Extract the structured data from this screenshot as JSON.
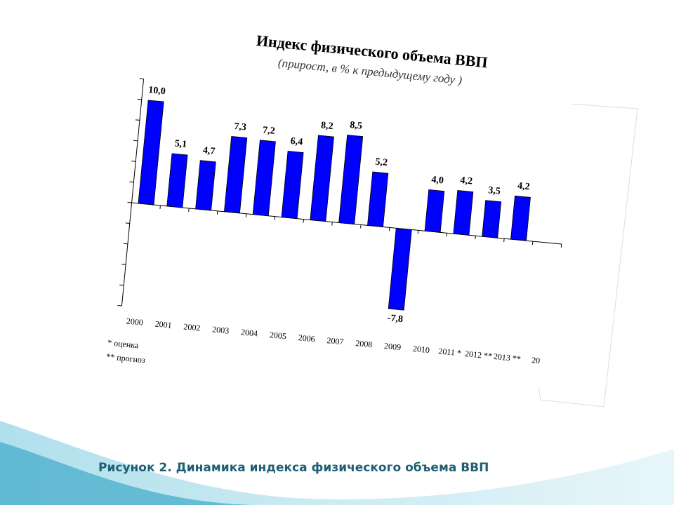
{
  "chart_data": {
    "type": "bar",
    "title": "Индекс физического объема ВВП",
    "subtitle": "(прирост, в % к предыдущему году )",
    "categories": [
      "2000",
      "2001",
      "2002",
      "2003",
      "2004",
      "2005",
      "2006",
      "2007",
      "2008",
      "2009",
      "2010",
      "2011 *",
      "2012 **",
      "2013 **",
      "20"
    ],
    "values": [
      10.0,
      5.1,
      4.7,
      7.3,
      7.2,
      6.4,
      8.2,
      8.5,
      5.2,
      -7.8,
      4.0,
      4.2,
      3.5,
      4.2,
      null
    ],
    "value_labels": [
      "10,0",
      "5,1",
      "4,7",
      "7,3",
      "7,2",
      "6,4",
      "8,2",
      "8,5",
      "5,2",
      "-7,8",
      "4,0",
      "4,2",
      "3,5",
      "4,2",
      null
    ],
    "color": "#0000ff",
    "ylim": [
      -10,
      12
    ],
    "yticks": [
      -10,
      -8,
      -6,
      -4,
      -2,
      0,
      2,
      4,
      6,
      8,
      10,
      12
    ],
    "notes": [
      "* оценка",
      "** прогноз"
    ]
  },
  "caption": "Рисунок 2. Динамика индекса физического объема ВВП"
}
